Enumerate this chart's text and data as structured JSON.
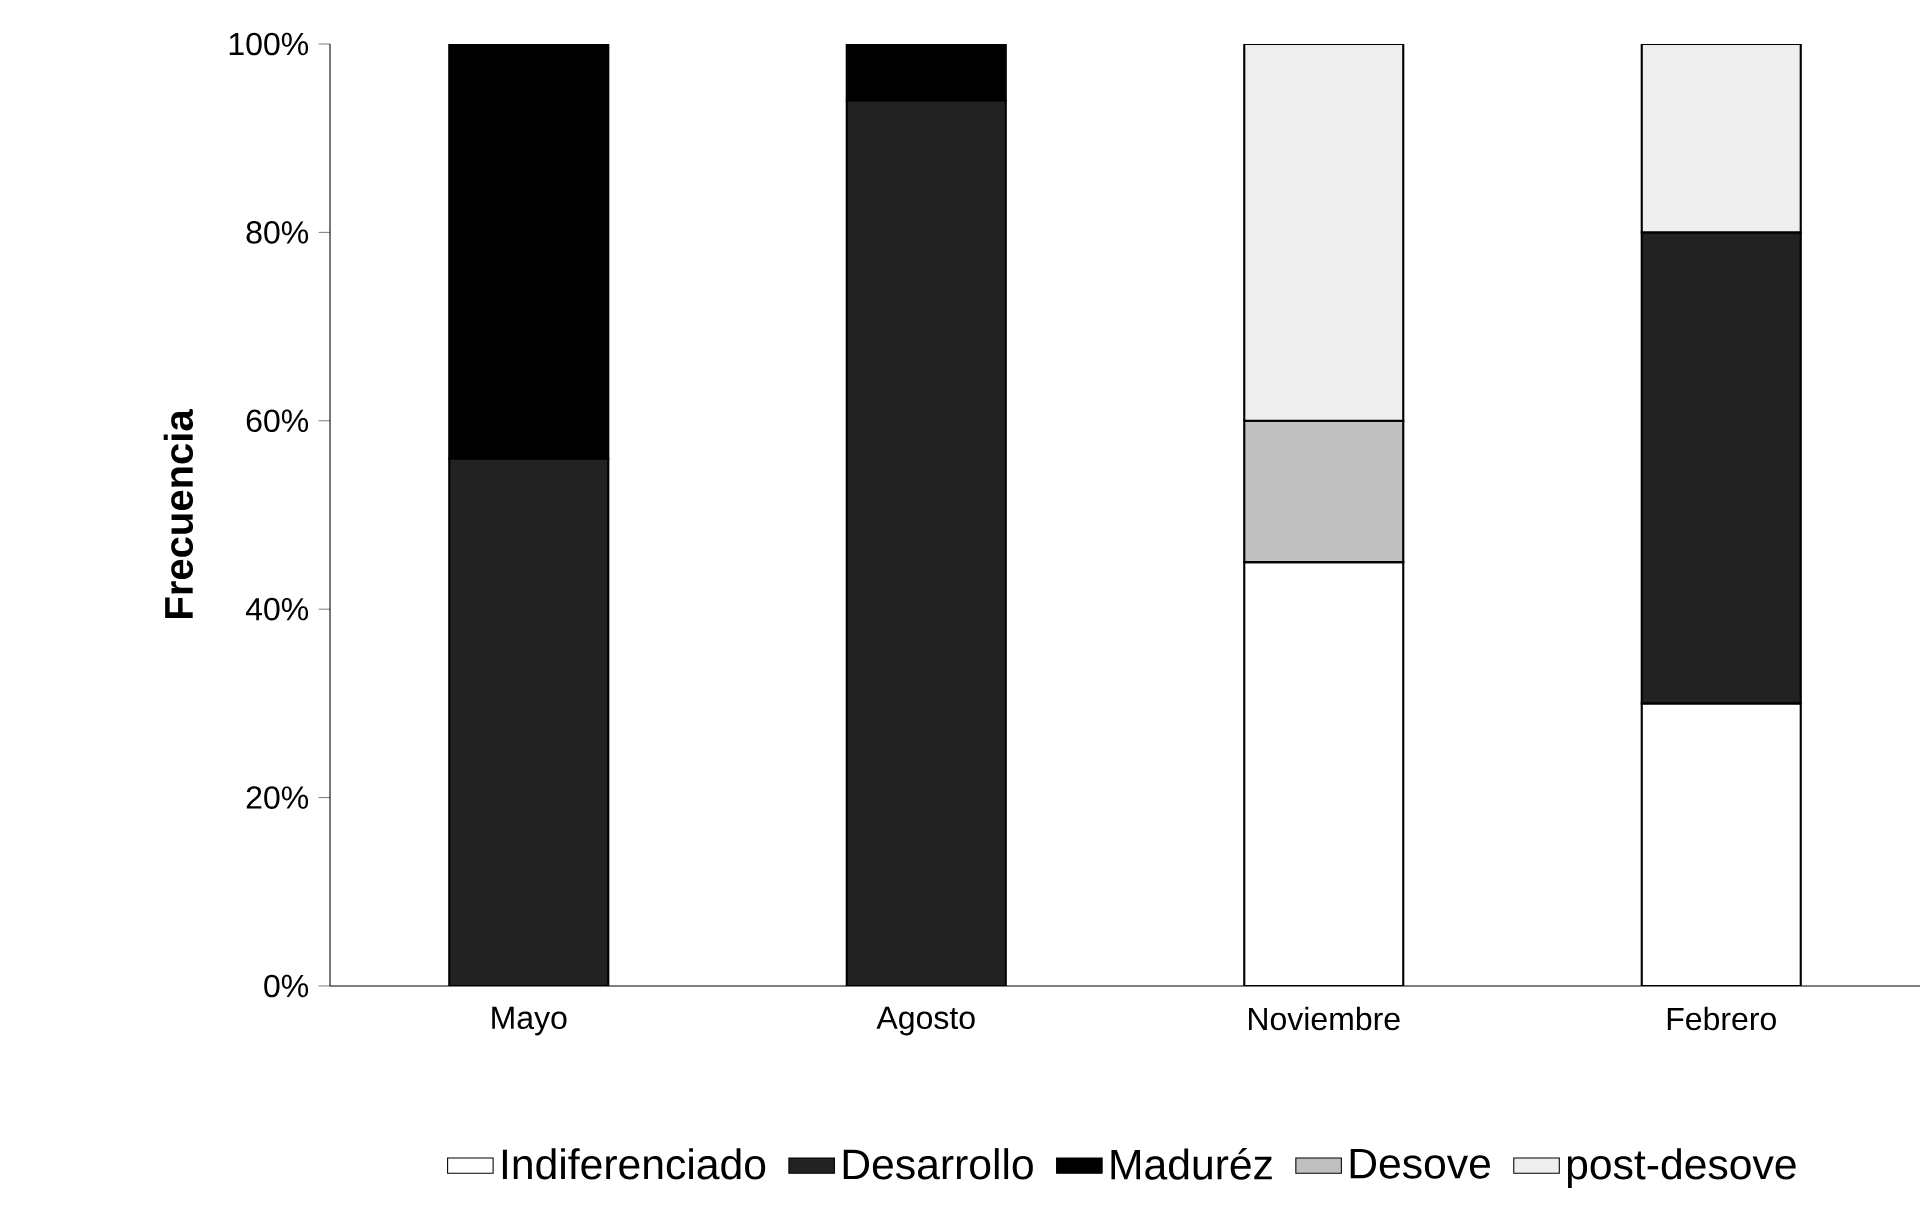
{
  "chart_data": {
    "type": "bar",
    "stacked": true,
    "ylabel": "Frecuencia",
    "categories": [
      "Mayo",
      "Agosto",
      "Noviembre",
      "Febrero"
    ],
    "series": [
      {
        "name": "Indiferenciado",
        "color": "#ffffff",
        "values": [
          0,
          0,
          45,
          30
        ]
      },
      {
        "name": "Desarrollo",
        "color": "#222222",
        "values": [
          56,
          94,
          0,
          50
        ]
      },
      {
        "name": "Maduréz",
        "color": "#000000",
        "values": [
          44,
          6,
          0,
          0
        ]
      },
      {
        "name": "Desove",
        "color": "#c0c0c0",
        "values": [
          0,
          0,
          15,
          0
        ]
      },
      {
        "name": "post-desove",
        "color": "#eeeeee",
        "values": [
          0,
          0,
          40,
          20
        ]
      }
    ],
    "ylim": [
      0,
      100
    ],
    "yticks": [
      {
        "value": 0,
        "label": "0%"
      },
      {
        "value": 20,
        "label": "20%"
      },
      {
        "value": 40,
        "label": "40%"
      },
      {
        "value": 60,
        "label": "60%"
      },
      {
        "value": 80,
        "label": "80%"
      },
      {
        "value": 100,
        "label": "100%"
      }
    ],
    "legend": "bottom",
    "grid": false
  }
}
